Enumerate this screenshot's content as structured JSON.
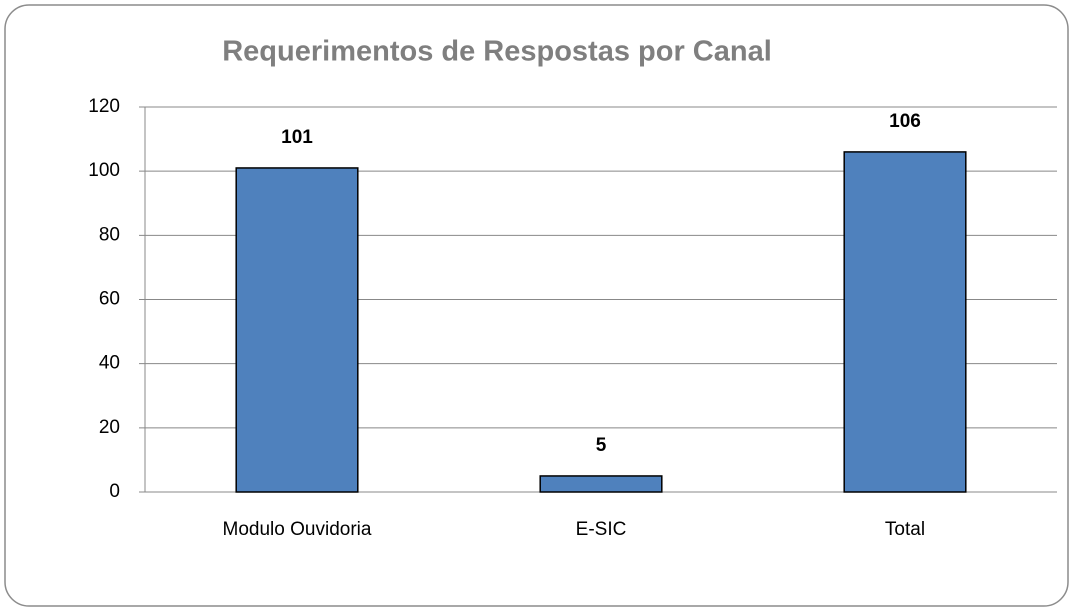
{
  "chart_data": {
    "type": "bar",
    "title": "Requerimentos de Respostas por Canal",
    "categories": [
      "Modulo Ouvidoria",
      "E-SIC",
      "Total"
    ],
    "values": [
      101,
      5,
      106
    ],
    "color": "#4f81bd",
    "ylim": [
      0,
      120
    ],
    "yticks": [
      0,
      20,
      40,
      60,
      80,
      100,
      120
    ],
    "grid": true
  }
}
